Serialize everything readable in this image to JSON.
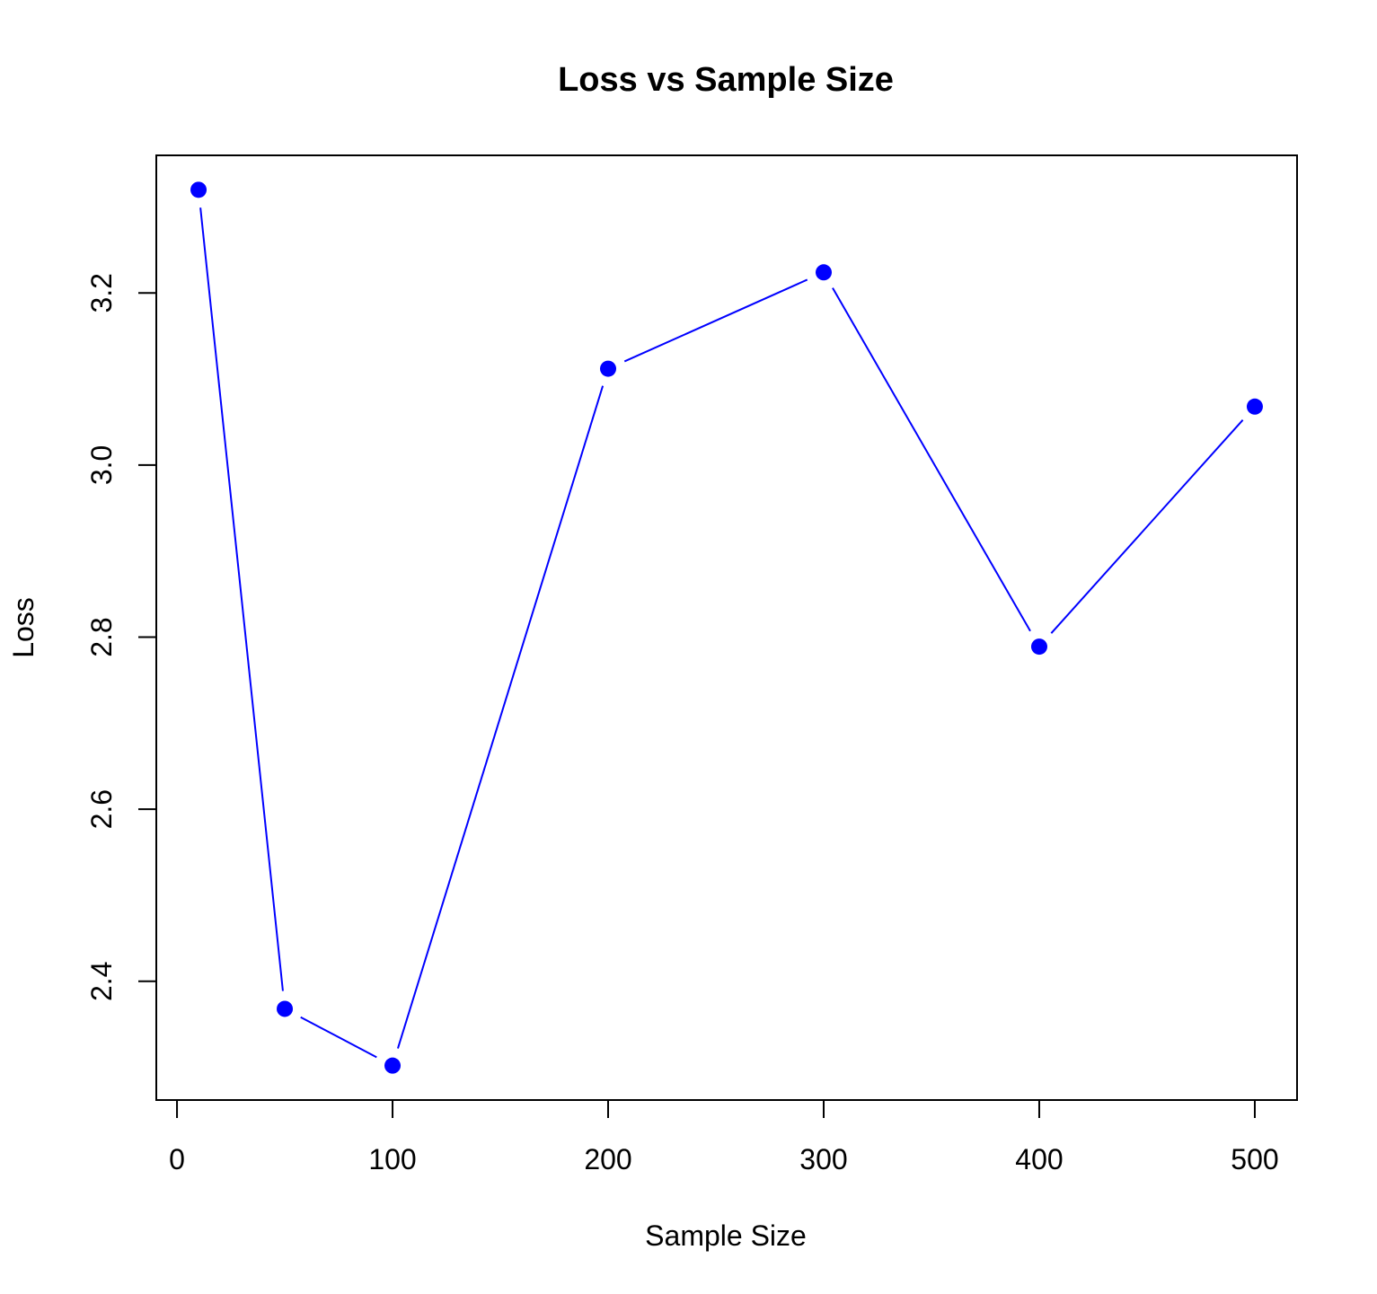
{
  "chart_data": {
    "type": "line",
    "title": "Loss vs Sample Size",
    "xlabel": "Sample Size",
    "ylabel": "Loss",
    "x": [
      10,
      50,
      100,
      200,
      300,
      400,
      500
    ],
    "series": [
      {
        "values": [
          3.32,
          2.368,
          2.302,
          3.112,
          3.224,
          2.789,
          3.068
        ],
        "color": "#0000ff"
      }
    ],
    "xticks": [
      0,
      100,
      200,
      300,
      400,
      500
    ],
    "yticks": [
      2.4,
      2.6,
      2.8,
      3.0,
      3.2
    ],
    "xtick_labels": [
      "0",
      "100",
      "200",
      "300",
      "400",
      "500"
    ],
    "ytick_labels": [
      "2.4",
      "2.6",
      "2.8",
      "3.0",
      "3.2"
    ],
    "xlim": [
      -9.6,
      519.6
    ],
    "ylim": [
      2.262,
      3.36
    ],
    "grid": false,
    "marker": "filled-circle",
    "line_style": "segments-with-gaps"
  }
}
